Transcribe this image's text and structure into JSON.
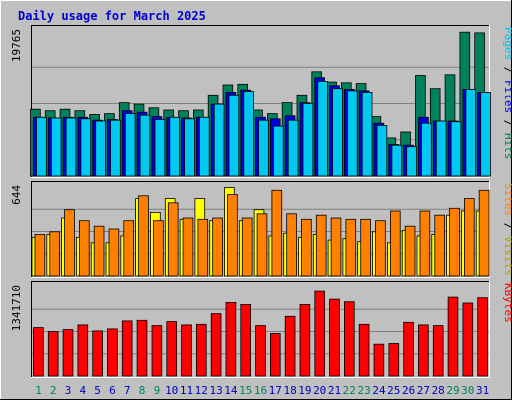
{
  "title": "Daily usage for March 2025",
  "colors": {
    "background": "#c0c0c0",
    "title": "#0000d0",
    "hits": "#00805c",
    "files": "#0000e0",
    "pages": "#00c8f0",
    "visits": "#ffff00",
    "sites": "#ff8000",
    "kbytes": "#ff0000",
    "weekend_label": "#00805c",
    "weekday_label": "#0000c0"
  },
  "chart_data": [
    {
      "type": "bar",
      "panel": "top",
      "ymax_label": "19765",
      "ylim": [
        0,
        19765
      ],
      "categories": [
        "1",
        "2",
        "3",
        "4",
        "5",
        "6",
        "7",
        "8",
        "9",
        "10",
        "11",
        "12",
        "13",
        "14",
        "15",
        "16",
        "17",
        "18",
        "19",
        "20",
        "21",
        "22",
        "23",
        "24",
        "25",
        "26",
        "27",
        "28",
        "29",
        "30",
        "31"
      ],
      "legend": [
        {
          "text": "Hits",
          "color": "#00805c"
        },
        {
          "text": " / ",
          "color": "#000000"
        },
        {
          "text": "Files",
          "color": "#0000e0"
        },
        {
          "text": " / ",
          "color": "#000000"
        },
        {
          "text": "Pages",
          "color": "#00c8f0"
        }
      ],
      "series": [
        {
          "name": "Hits",
          "values": [
            9100,
            8900,
            9100,
            8900,
            8400,
            8500,
            10000,
            9800,
            9300,
            9000,
            8900,
            9000,
            11000,
            12400,
            12500,
            9000,
            8500,
            10000,
            11000,
            14200,
            12800,
            12700,
            12600,
            8100,
            5200,
            6000,
            13700,
            11900,
            13800,
            19600,
            19500
          ]
        },
        {
          "name": "Files",
          "values": [
            8000,
            7900,
            8000,
            8000,
            7600,
            7700,
            8900,
            8700,
            8100,
            8000,
            7900,
            8000,
            9800,
            11400,
            11700,
            8000,
            7800,
            8200,
            10000,
            13400,
            12300,
            11800,
            11600,
            7200,
            4300,
            4200,
            8000,
            7500,
            7500,
            11800,
            11400
          ]
        },
        {
          "name": "Pages",
          "values": [
            8000,
            7900,
            7900,
            7800,
            7500,
            7600,
            8500,
            8300,
            7700,
            8000,
            7800,
            8000,
            9800,
            11000,
            11500,
            7600,
            6800,
            7600,
            9900,
            12900,
            11900,
            11600,
            11400,
            6900,
            4200,
            4000,
            7200,
            7500,
            7400,
            11800,
            11400
          ]
        }
      ]
    },
    {
      "type": "bar",
      "panel": "middle",
      "ymax_label": "644",
      "ylim": [
        0,
        644
      ],
      "categories": [
        "1",
        "2",
        "3",
        "4",
        "5",
        "6",
        "7",
        "8",
        "9",
        "10",
        "11",
        "12",
        "13",
        "14",
        "15",
        "16",
        "17",
        "18",
        "19",
        "20",
        "21",
        "22",
        "23",
        "24",
        "25",
        "26",
        "27",
        "28",
        "29",
        "30",
        "31"
      ],
      "legend": [
        {
          "text": "Visits",
          "color": "#b0a000"
        },
        {
          "text": " / ",
          "color": "#000000"
        },
        {
          "text": "Sites",
          "color": "#ff8000"
        }
      ],
      "series": [
        {
          "name": "Visits",
          "values": [
            280,
            300,
            420,
            280,
            240,
            240,
            290,
            560,
            460,
            560,
            410,
            560,
            400,
            640,
            400,
            480,
            290,
            310,
            280,
            300,
            260,
            270,
            250,
            320,
            240,
            330,
            290,
            300,
            440,
            470,
            470
          ]
        },
        {
          "name": "Sites",
          "values": [
            300,
            320,
            480,
            400,
            360,
            340,
            400,
            580,
            400,
            530,
            420,
            410,
            420,
            590,
            420,
            450,
            620,
            450,
            410,
            440,
            420,
            410,
            410,
            400,
            470,
            360,
            470,
            440,
            490,
            560,
            620
          ]
        }
      ]
    },
    {
      "type": "bar",
      "panel": "bottom",
      "ymax_label": "1341710",
      "ylim": [
        0,
        1341710
      ],
      "categories": [
        "1",
        "2",
        "3",
        "4",
        "5",
        "6",
        "7",
        "8",
        "9",
        "10",
        "11",
        "12",
        "13",
        "14",
        "15",
        "16",
        "17",
        "18",
        "19",
        "20",
        "21",
        "22",
        "23",
        "24",
        "25",
        "26",
        "27",
        "28",
        "29",
        "30",
        "31"
      ],
      "legend": [
        {
          "text": "KBytes",
          "color": "#ff0000"
        }
      ],
      "series": [
        {
          "name": "KBytes",
          "values": [
            730000,
            670000,
            700000,
            770000,
            680000,
            710000,
            830000,
            840000,
            760000,
            820000,
            770000,
            780000,
            940000,
            1110000,
            1080000,
            760000,
            640000,
            900000,
            1080000,
            1280000,
            1160000,
            1120000,
            780000,
            480000,
            490000,
            810000,
            770000,
            760000,
            1190000,
            1100000,
            1180000
          ]
        }
      ]
    }
  ],
  "weekends": [
    1,
    8,
    15,
    22,
    29
  ],
  "weekend_days": [
    "1",
    "2",
    "8",
    "9",
    "15",
    "16",
    "22",
    "23",
    "29",
    "30"
  ]
}
